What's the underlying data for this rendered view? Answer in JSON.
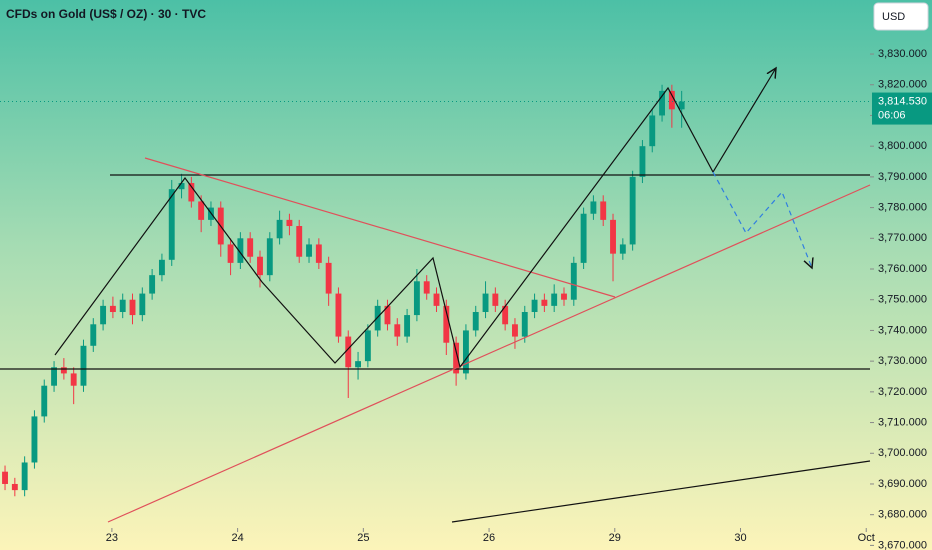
{
  "chart_data": {
    "type": "candlestick",
    "title": "CFDs on Gold (US$ / OZ) · 30 · TVC",
    "currency": "USD",
    "last_price": {
      "value": 3814.53,
      "label": "3,814.530"
    },
    "countdown": "06:06",
    "up_color": "#089981",
    "down_color": "#f23645",
    "xlim": [
      -0.89,
      6.03
    ],
    "ylim": [
      3668.5,
      3847.6
    ],
    "xticks": [
      {
        "value": 0,
        "label": "23"
      },
      {
        "value": 1,
        "label": "24"
      },
      {
        "value": 2,
        "label": "25"
      },
      {
        "value": 3,
        "label": "26"
      },
      {
        "value": 4,
        "label": "29"
      },
      {
        "value": 5,
        "label": "30"
      },
      {
        "value": 6,
        "label": "Oct"
      }
    ],
    "yticks": [
      {
        "value": 3670,
        "label": "3,670.000"
      },
      {
        "value": 3680,
        "label": "3,680.000"
      },
      {
        "value": 3690,
        "label": "3,690.000"
      },
      {
        "value": 3700,
        "label": "3,700.000"
      },
      {
        "value": 3710,
        "label": "3,710.000"
      },
      {
        "value": 3720,
        "label": "3,720.000"
      },
      {
        "value": 3730,
        "label": "3,730.000"
      },
      {
        "value": 3740,
        "label": "3,740.000"
      },
      {
        "value": 3750,
        "label": "3,750.000"
      },
      {
        "value": 3760,
        "label": "3,760.000"
      },
      {
        "value": 3770,
        "label": "3,770.000"
      },
      {
        "value": 3780,
        "label": "3,780.000"
      },
      {
        "value": 3790,
        "label": "3,790.000"
      },
      {
        "value": 3800,
        "label": "3,800.000"
      },
      {
        "value": 3810,
        "label": "3,810.000"
      },
      {
        "value": 3820,
        "label": "3,820.000"
      },
      {
        "value": 3830,
        "label": "3,830.000"
      }
    ],
    "x": [
      -0.85,
      -0.772,
      -0.694,
      -0.616,
      -0.538,
      -0.46,
      -0.382,
      -0.304,
      -0.226,
      -0.148,
      -0.07,
      0.008,
      0.086,
      0.164,
      0.242,
      0.32,
      0.398,
      0.476,
      0.554,
      0.632,
      0.71,
      0.788,
      0.866,
      0.944,
      1.022,
      1.1,
      1.178,
      1.256,
      1.334,
      1.412,
      1.49,
      1.568,
      1.646,
      1.724,
      1.802,
      1.88,
      1.958,
      2.036,
      2.114,
      2.192,
      2.27,
      2.348,
      2.426,
      2.504,
      2.582,
      2.66,
      2.738,
      2.816,
      2.894,
      2.972,
      3.05,
      3.128,
      3.206,
      3.284,
      3.362,
      3.44,
      3.518,
      3.596,
      3.674,
      3.752,
      3.83,
      3.908,
      3.986,
      4.064,
      4.142,
      4.22,
      4.298,
      4.376,
      4.454,
      4.532
    ],
    "ohlc": [
      [
        3694,
        3696,
        3688,
        3690
      ],
      [
        3690,
        3692,
        3686,
        3688
      ],
      [
        3688,
        3699,
        3686,
        3697
      ],
      [
        3697,
        3714,
        3695,
        3712
      ],
      [
        3712,
        3724,
        3710,
        3722
      ],
      [
        3722,
        3730,
        3720,
        3728
      ],
      [
        3728,
        3731,
        3724,
        3726
      ],
      [
        3726,
        3728,
        3716,
        3722
      ],
      [
        3722,
        3737,
        3720,
        3735
      ],
      [
        3735,
        3744,
        3733,
        3742
      ],
      [
        3742,
        3750,
        3740,
        3748
      ],
      [
        3748,
        3751,
        3744,
        3746
      ],
      [
        3746,
        3752,
        3744,
        3750
      ],
      [
        3750,
        3752,
        3742,
        3745
      ],
      [
        3745,
        3754,
        3743,
        3752
      ],
      [
        3752,
        3760,
        3750,
        3758
      ],
      [
        3758,
        3765,
        3756,
        3763
      ],
      [
        3763,
        3789,
        3761,
        3786
      ],
      [
        3786,
        3791,
        3783,
        3788
      ],
      [
        3788,
        3790,
        3780,
        3782
      ],
      [
        3782,
        3784,
        3772,
        3776
      ],
      [
        3776,
        3782,
        3774,
        3780
      ],
      [
        3780,
        3782,
        3764,
        3768
      ],
      [
        3768,
        3770,
        3758,
        3762
      ],
      [
        3762,
        3772,
        3760,
        3770
      ],
      [
        3770,
        3772,
        3762,
        3764
      ],
      [
        3764,
        3766,
        3754,
        3758
      ],
      [
        3758,
        3772,
        3756,
        3770
      ],
      [
        3770,
        3779,
        3768,
        3776
      ],
      [
        3776,
        3778,
        3771,
        3774
      ],
      [
        3774,
        3776,
        3762,
        3764
      ],
      [
        3764,
        3770,
        3762,
        3768
      ],
      [
        3768,
        3770,
        3760,
        3762
      ],
      [
        3762,
        3764,
        3748,
        3752
      ],
      [
        3752,
        3754,
        3736,
        3738
      ],
      [
        3738,
        3740,
        3718,
        3728
      ],
      [
        3728,
        3733,
        3724,
        3730
      ],
      [
        3730,
        3742,
        3728,
        3740
      ],
      [
        3740,
        3750,
        3738,
        3748
      ],
      [
        3748,
        3750,
        3740,
        3742
      ],
      [
        3742,
        3744,
        3735,
        3738
      ],
      [
        3738,
        3747,
        3736,
        3745
      ],
      [
        3745,
        3760,
        3743,
        3756
      ],
      [
        3756,
        3758,
        3750,
        3752
      ],
      [
        3752,
        3754,
        3746,
        3748
      ],
      [
        3748,
        3750,
        3732,
        3736
      ],
      [
        3736,
        3738,
        3722,
        3726
      ],
      [
        3726,
        3742,
        3724,
        3740
      ],
      [
        3740,
        3748,
        3738,
        3746
      ],
      [
        3746,
        3756,
        3744,
        3752
      ],
      [
        3752,
        3754,
        3746,
        3748
      ],
      [
        3748,
        3750,
        3740,
        3742
      ],
      [
        3742,
        3744,
        3734,
        3738
      ],
      [
        3738,
        3748,
        3736,
        3746
      ],
      [
        3746,
        3752,
        3744,
        3750
      ],
      [
        3750,
        3752,
        3746,
        3748
      ],
      [
        3748,
        3755,
        3746,
        3752
      ],
      [
        3752,
        3754,
        3748,
        3750
      ],
      [
        3750,
        3764,
        3748,
        3762
      ],
      [
        3762,
        3780,
        3760,
        3778
      ],
      [
        3778,
        3784,
        3776,
        3782
      ],
      [
        3782,
        3784,
        3774,
        3776
      ],
      [
        3776,
        3778,
        3756,
        3765
      ],
      [
        3765,
        3770,
        3763,
        3768
      ],
      [
        3768,
        3792,
        3766,
        3790
      ],
      [
        3790,
        3802,
        3788,
        3800
      ],
      [
        3800,
        3812,
        3798,
        3810
      ],
      [
        3810,
        3820,
        3808,
        3818
      ],
      [
        3818,
        3820,
        3806,
        3812
      ],
      [
        3812,
        3818,
        3806,
        3814.53
      ]
    ]
  }
}
